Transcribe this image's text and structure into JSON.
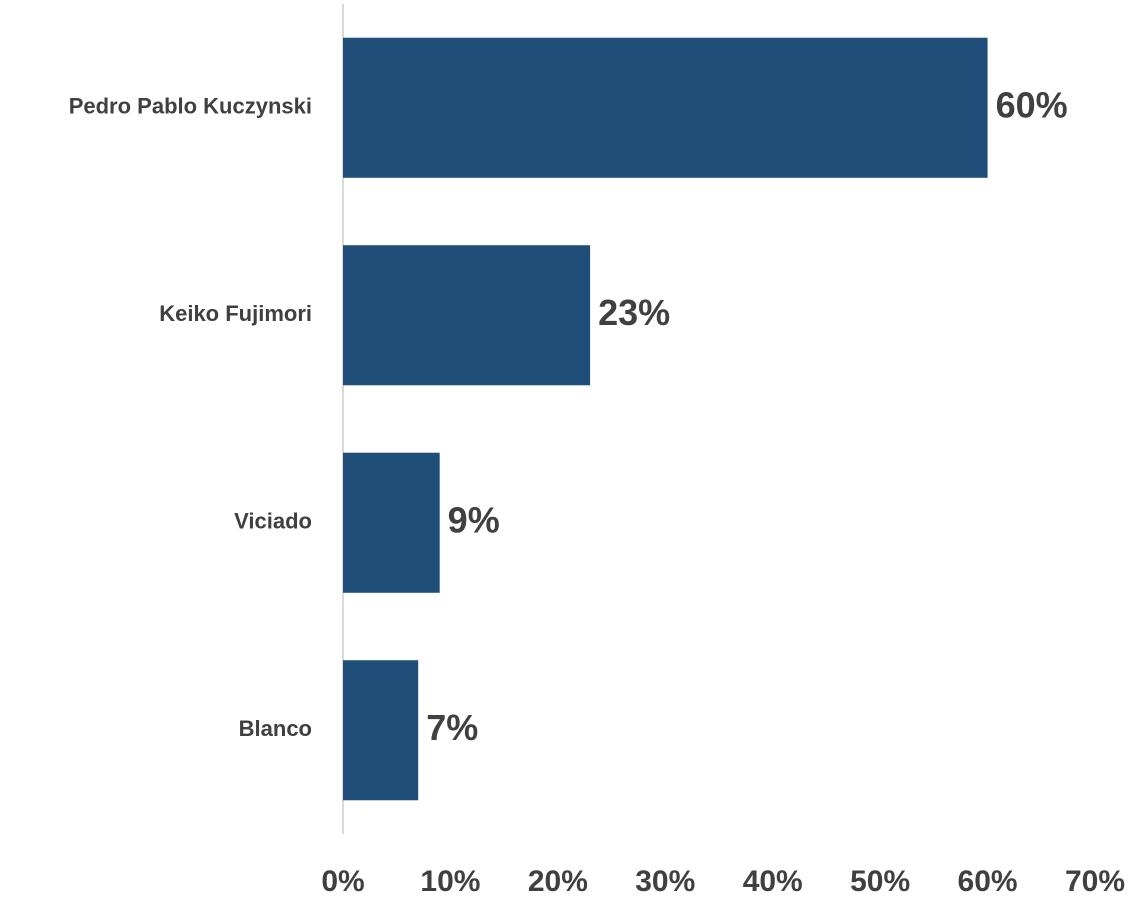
{
  "chart_data": {
    "type": "bar",
    "orientation": "horizontal",
    "categories": [
      "Pedro Pablo Kuczynski",
      "Keiko Fujimori",
      "Viciado",
      "Blanco"
    ],
    "values": [
      60,
      23,
      9,
      7
    ],
    "value_labels": [
      "60%",
      "23%",
      "9%",
      "7%"
    ],
    "color": "#1f4e79",
    "xlim": [
      0,
      70
    ],
    "xticks": [
      {
        "value": 0,
        "label": "0%"
      },
      {
        "value": 10,
        "label": "10%"
      },
      {
        "value": 20,
        "label": "20%"
      },
      {
        "value": 30,
        "label": "30%"
      },
      {
        "value": 40,
        "label": "40%"
      },
      {
        "value": 50,
        "label": "50%"
      },
      {
        "value": 60,
        "label": "60%"
      },
      {
        "value": 70,
        "label": "70%"
      }
    ],
    "grid": false
  }
}
